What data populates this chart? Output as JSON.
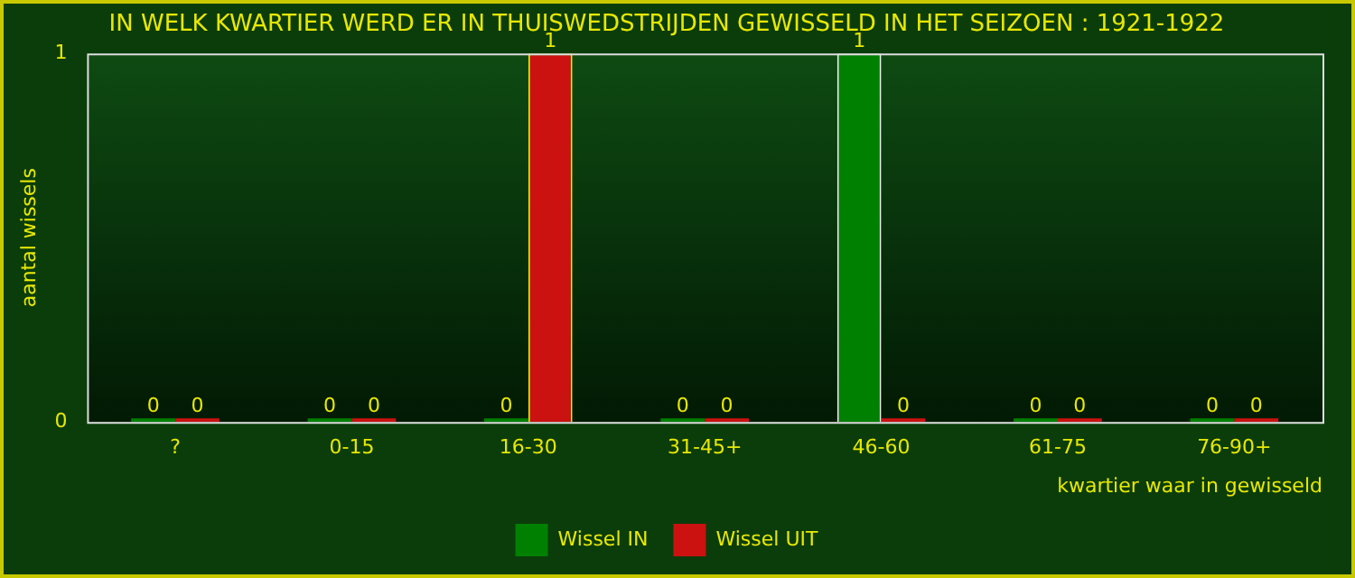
{
  "chart_data": {
    "type": "bar",
    "title": "IN WELK KWARTIER WERD ER IN THUISWEDSTRIJDEN GEWISSELD IN HET SEIZOEN : 1921-1922",
    "xlabel": "kwartier waar in gewisseld",
    "ylabel": "aantal wissels",
    "categories": [
      "?",
      "0-15",
      "16-30",
      "31-45+",
      "46-60",
      "61-75",
      "76-90+"
    ],
    "series": [
      {
        "name": "Wissel IN",
        "color": "#008000",
        "values": [
          0,
          0,
          0,
          0,
          1,
          0,
          0
        ]
      },
      {
        "name": "Wissel UIT",
        "color": "#cc1111",
        "values": [
          0,
          0,
          1,
          0,
          0,
          0,
          0
        ]
      }
    ],
    "ylim": [
      0,
      1
    ],
    "yticks": [
      0,
      1
    ],
    "grid": false,
    "legend": "bottom",
    "data_labels": true
  }
}
